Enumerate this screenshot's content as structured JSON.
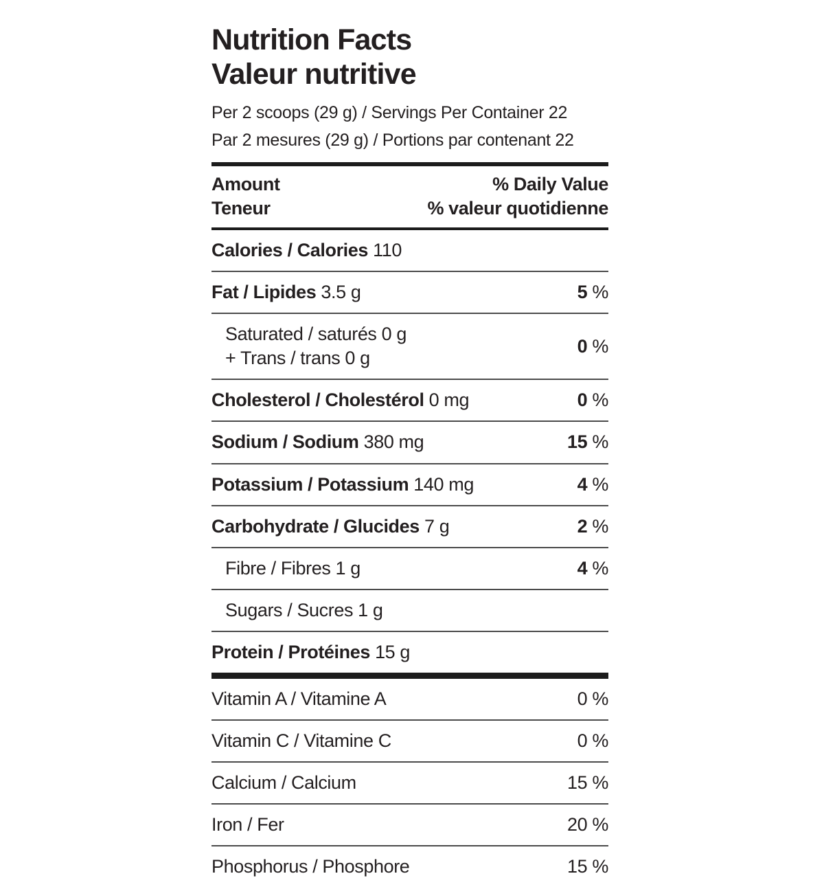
{
  "label": {
    "title_en": "Nutrition Facts",
    "title_fr": "Valeur nutritive",
    "serving_en": "Per 2 scoops (29 g) / Servings Per Container 22",
    "serving_fr": "Par 2 mesures (29 g) / Portions par contenant 22",
    "header": {
      "amount_en": "Amount",
      "amount_fr": "Teneur",
      "daily_value_en": "% Daily Value",
      "daily_value_fr": "% valeur quotidienne"
    },
    "text_color": "#231f20",
    "rule_color": "#4a4a4a",
    "bar_color": "#1c1c1c",
    "rows": [
      {
        "label_bold": "Calories / Calories",
        "label_plain": "110",
        "indent": false,
        "percent": null,
        "percent_bold": false,
        "divider_after": "thin"
      },
      {
        "label_bold": "Fat / Lipides",
        "label_plain": "3.5 g",
        "indent": false,
        "percent": "5",
        "percent_bold": true,
        "divider_after": "thin"
      },
      {
        "lines": [
          "Saturated / saturés 0 g",
          "+ Trans / trans 0 g"
        ],
        "indent": true,
        "percent": "0",
        "percent_bold": true,
        "divider_after": "thin"
      },
      {
        "label_bold": "Cholesterol / Cholestérol",
        "label_plain": "0 mg",
        "indent": false,
        "percent": "0",
        "percent_bold": true,
        "divider_after": "thin"
      },
      {
        "label_bold": "Sodium / Sodium",
        "label_plain": "380 mg",
        "indent": false,
        "percent": "15",
        "percent_bold": true,
        "divider_after": "thin"
      },
      {
        "label_bold": "Potassium / Potassium",
        "label_plain": "140 mg",
        "indent": false,
        "percent": "4",
        "percent_bold": true,
        "divider_after": "thin"
      },
      {
        "label_bold": "Carbohydrate / Glucides",
        "label_plain": "7 g",
        "indent": false,
        "percent": "2",
        "percent_bold": true,
        "divider_after": "thin"
      },
      {
        "label_plain": "Fibre / Fibres 1 g",
        "indent": true,
        "percent": "4",
        "percent_bold": true,
        "divider_after": "thin"
      },
      {
        "label_plain": "Sugars / Sucres 1 g",
        "indent": true,
        "percent": null,
        "percent_bold": false,
        "divider_after": "thin"
      },
      {
        "label_bold": "Protein / Protéines",
        "label_plain": "15 g",
        "indent": false,
        "percent": null,
        "percent_bold": false,
        "divider_after": "thick"
      },
      {
        "label_plain": "Vitamin A / Vitamine A",
        "indent": false,
        "percent": "0",
        "percent_bold": false,
        "divider_after": "thin"
      },
      {
        "label_plain": "Vitamin C / Vitamine C",
        "indent": false,
        "percent": "0",
        "percent_bold": false,
        "divider_after": "thin"
      },
      {
        "label_plain": "Calcium / Calcium",
        "indent": false,
        "percent": "15",
        "percent_bold": false,
        "divider_after": "thin"
      },
      {
        "label_plain": "Iron / Fer",
        "indent": false,
        "percent": "20",
        "percent_bold": false,
        "divider_after": "thin"
      },
      {
        "label_plain": "Phosphorus / Phosphore",
        "indent": false,
        "percent": "15",
        "percent_bold": false,
        "divider_after": "none"
      }
    ]
  }
}
